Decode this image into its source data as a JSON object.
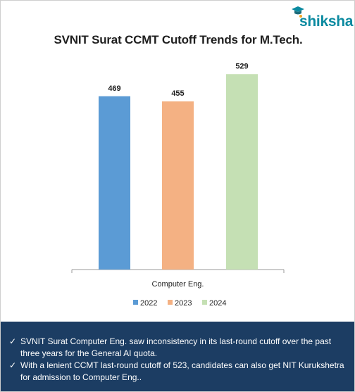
{
  "brand": {
    "name": "shiksha"
  },
  "chart_data": {
    "type": "bar",
    "title": "SVNIT Surat CCMT Cutoff Trends for M.Tech.",
    "categories": [
      "Computer Eng."
    ],
    "series": [
      {
        "name": "2022",
        "values": [
          469
        ],
        "color": "#5b9bd5"
      },
      {
        "name": "2023",
        "values": [
          455
        ],
        "color": "#f4b183"
      },
      {
        "name": "2024",
        "values": [
          529
        ],
        "color": "#c5e0b4"
      }
    ],
    "data_labels": [
      "469",
      "455",
      "529"
    ],
    "xlabel": "",
    "ylabel": "",
    "ylim": [
      0,
      560
    ],
    "grid": false,
    "legend_position": "bottom"
  },
  "footer": {
    "bullets": [
      "SVNIT Surat Computer Eng. saw inconsistency in its last-round cutoff over the past three years for the General AI quota.",
      "With a lenient CCMT last-round cutoff of 523, candidates can also get NIT Kurukshetra for admission to Computer Eng.."
    ],
    "bullet_icon": "check-icon"
  }
}
